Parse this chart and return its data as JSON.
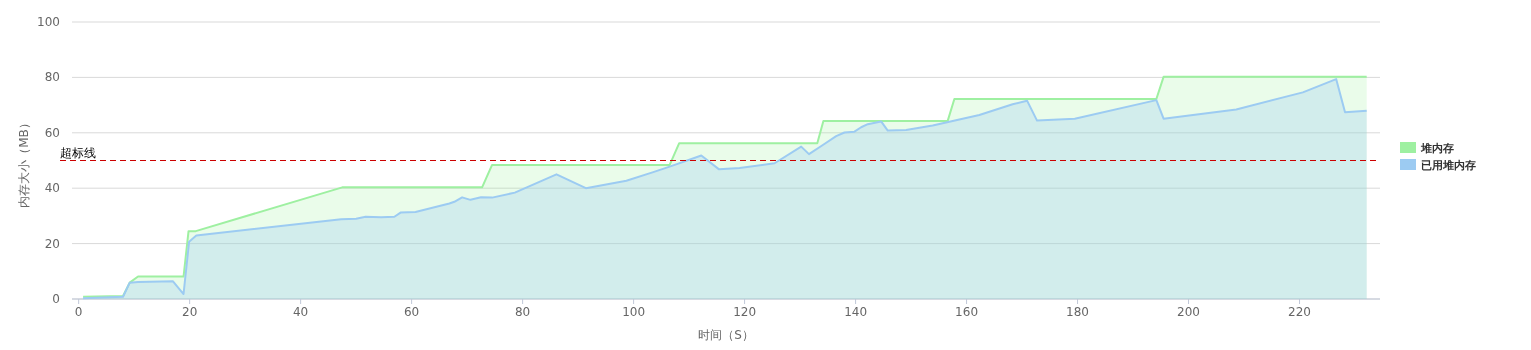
{
  "chart_data": {
    "type": "area",
    "xlabel": "时间（S）",
    "ylabel": "内存大小（MB）",
    "xlim": [
      -1.2,
      234.5
    ],
    "ylim": [
      0,
      100
    ],
    "xticks": [
      0,
      20,
      40,
      60,
      80,
      100,
      120,
      140,
      160,
      180,
      200,
      220
    ],
    "yticks": [
      0,
      20,
      40,
      60,
      80,
      100
    ],
    "grid": "y",
    "legend": "right",
    "marker": "none",
    "line_style": "solid",
    "ref_lines": [
      {
        "axis": "y",
        "value": 50,
        "label": "超标线",
        "color": "#cc0000",
        "line_style": "dashed"
      }
    ],
    "series": [
      {
        "name": "堆内存",
        "color": "#9ef0a1",
        "x": [
          0.8,
          8,
          9.2,
          10.7,
          18.9,
          19.8,
          21.1,
          47.5,
          72.7,
          74.5,
          106.5,
          108.2,
          133.1,
          134.2,
          156.6,
          157.8,
          194.2,
          195.5,
          232.1
        ],
        "values": [
          0.8,
          1.1,
          5.9,
          8.1,
          8.1,
          24.5,
          24.5,
          40.3,
          40.3,
          48.4,
          48.4,
          56.2,
          56.2,
          64.3,
          64.3,
          72.2,
          72.2,
          80.2,
          80.2
        ]
      },
      {
        "name": "已用堆内存",
        "color": "#9ccbf2",
        "x": [
          0.8,
          8,
          9.2,
          10.7,
          17,
          18.9,
          19.9,
          21.2,
          47.3,
          50,
          51.7,
          54.5,
          56.9,
          58,
          60.7,
          66.8,
          67.7,
          69.1,
          70.6,
          72.5,
          74.5,
          78.6,
          86.1,
          91.4,
          98.7,
          103.4,
          106.5,
          112.2,
          115.4,
          119.1,
          125.4,
          130.2,
          131.6,
          134.1,
          136.5,
          138,
          139.8,
          141,
          142.2,
          144.6,
          145.8,
          149.1,
          153.9,
          156.9,
          162.3,
          168.3,
          170.9,
          172.7,
          179.5,
          194.2,
          195.5,
          208.6,
          220.6,
          226.6,
          228.2,
          232.1
        ],
        "values": [
          0.3,
          0.8,
          5.9,
          6.1,
          6.4,
          1.8,
          20.7,
          22.9,
          28.8,
          29,
          29.7,
          29.5,
          29.7,
          31.2,
          31.4,
          34.5,
          35.1,
          36.7,
          35.8,
          36.7,
          36.6,
          38.4,
          45,
          40,
          42.7,
          45.7,
          47.8,
          51.8,
          46.8,
          47.3,
          49,
          55,
          52.3,
          55.6,
          58.8,
          60.1,
          60.4,
          62,
          63.1,
          64.1,
          60.8,
          61,
          62.6,
          64,
          66.4,
          70.3,
          71.6,
          64.4,
          65.1,
          71.8,
          65.1,
          68.4,
          74.6,
          79.4,
          67.4,
          68
        ]
      }
    ]
  }
}
